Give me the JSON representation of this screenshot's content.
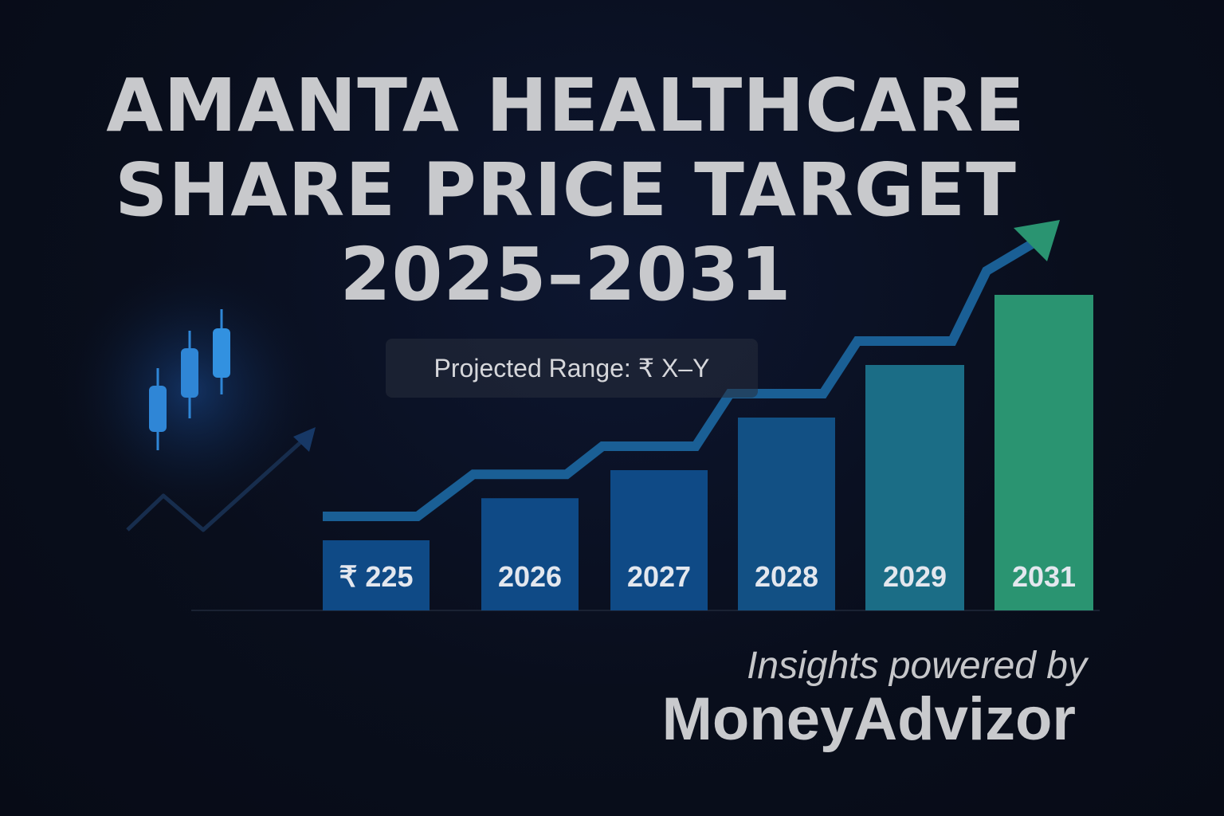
{
  "title": {
    "line1": "AMANTA HEALTHCARE",
    "line2": "SHARE PRICE TARGET",
    "line3": "2025–2031"
  },
  "projected_range": "Projected Range: ₹ X–Y",
  "footer": {
    "tagline": "Insights powered by",
    "brand": "MoneyAdvizor"
  },
  "colors": {
    "background": "#090e1c",
    "bar_blue": "#0f4a86",
    "bar_teal": "#1d7b86",
    "bar_green": "#2a9471",
    "trend_line": "#1a5f95",
    "trend_arrow": "#2a9471",
    "candle": "#2f86d6"
  },
  "chart_data": {
    "type": "bar",
    "categories": [
      "₹ 225",
      "2026",
      "2027",
      "2028",
      "2029",
      "2031"
    ],
    "values": [
      1.0,
      1.6,
      2.0,
      2.75,
      3.5,
      4.5
    ],
    "bar_colors": [
      "#0f4a86",
      "#0f4a86",
      "#0f4a86",
      "#125084",
      "#1b6d86",
      "#2a9471"
    ],
    "trend": "up",
    "title": "AMANTA HEALTHCARE SHARE PRICE TARGET 2025–2031",
    "xlabel": "",
    "ylabel": "",
    "grid": false,
    "legend": "none"
  }
}
